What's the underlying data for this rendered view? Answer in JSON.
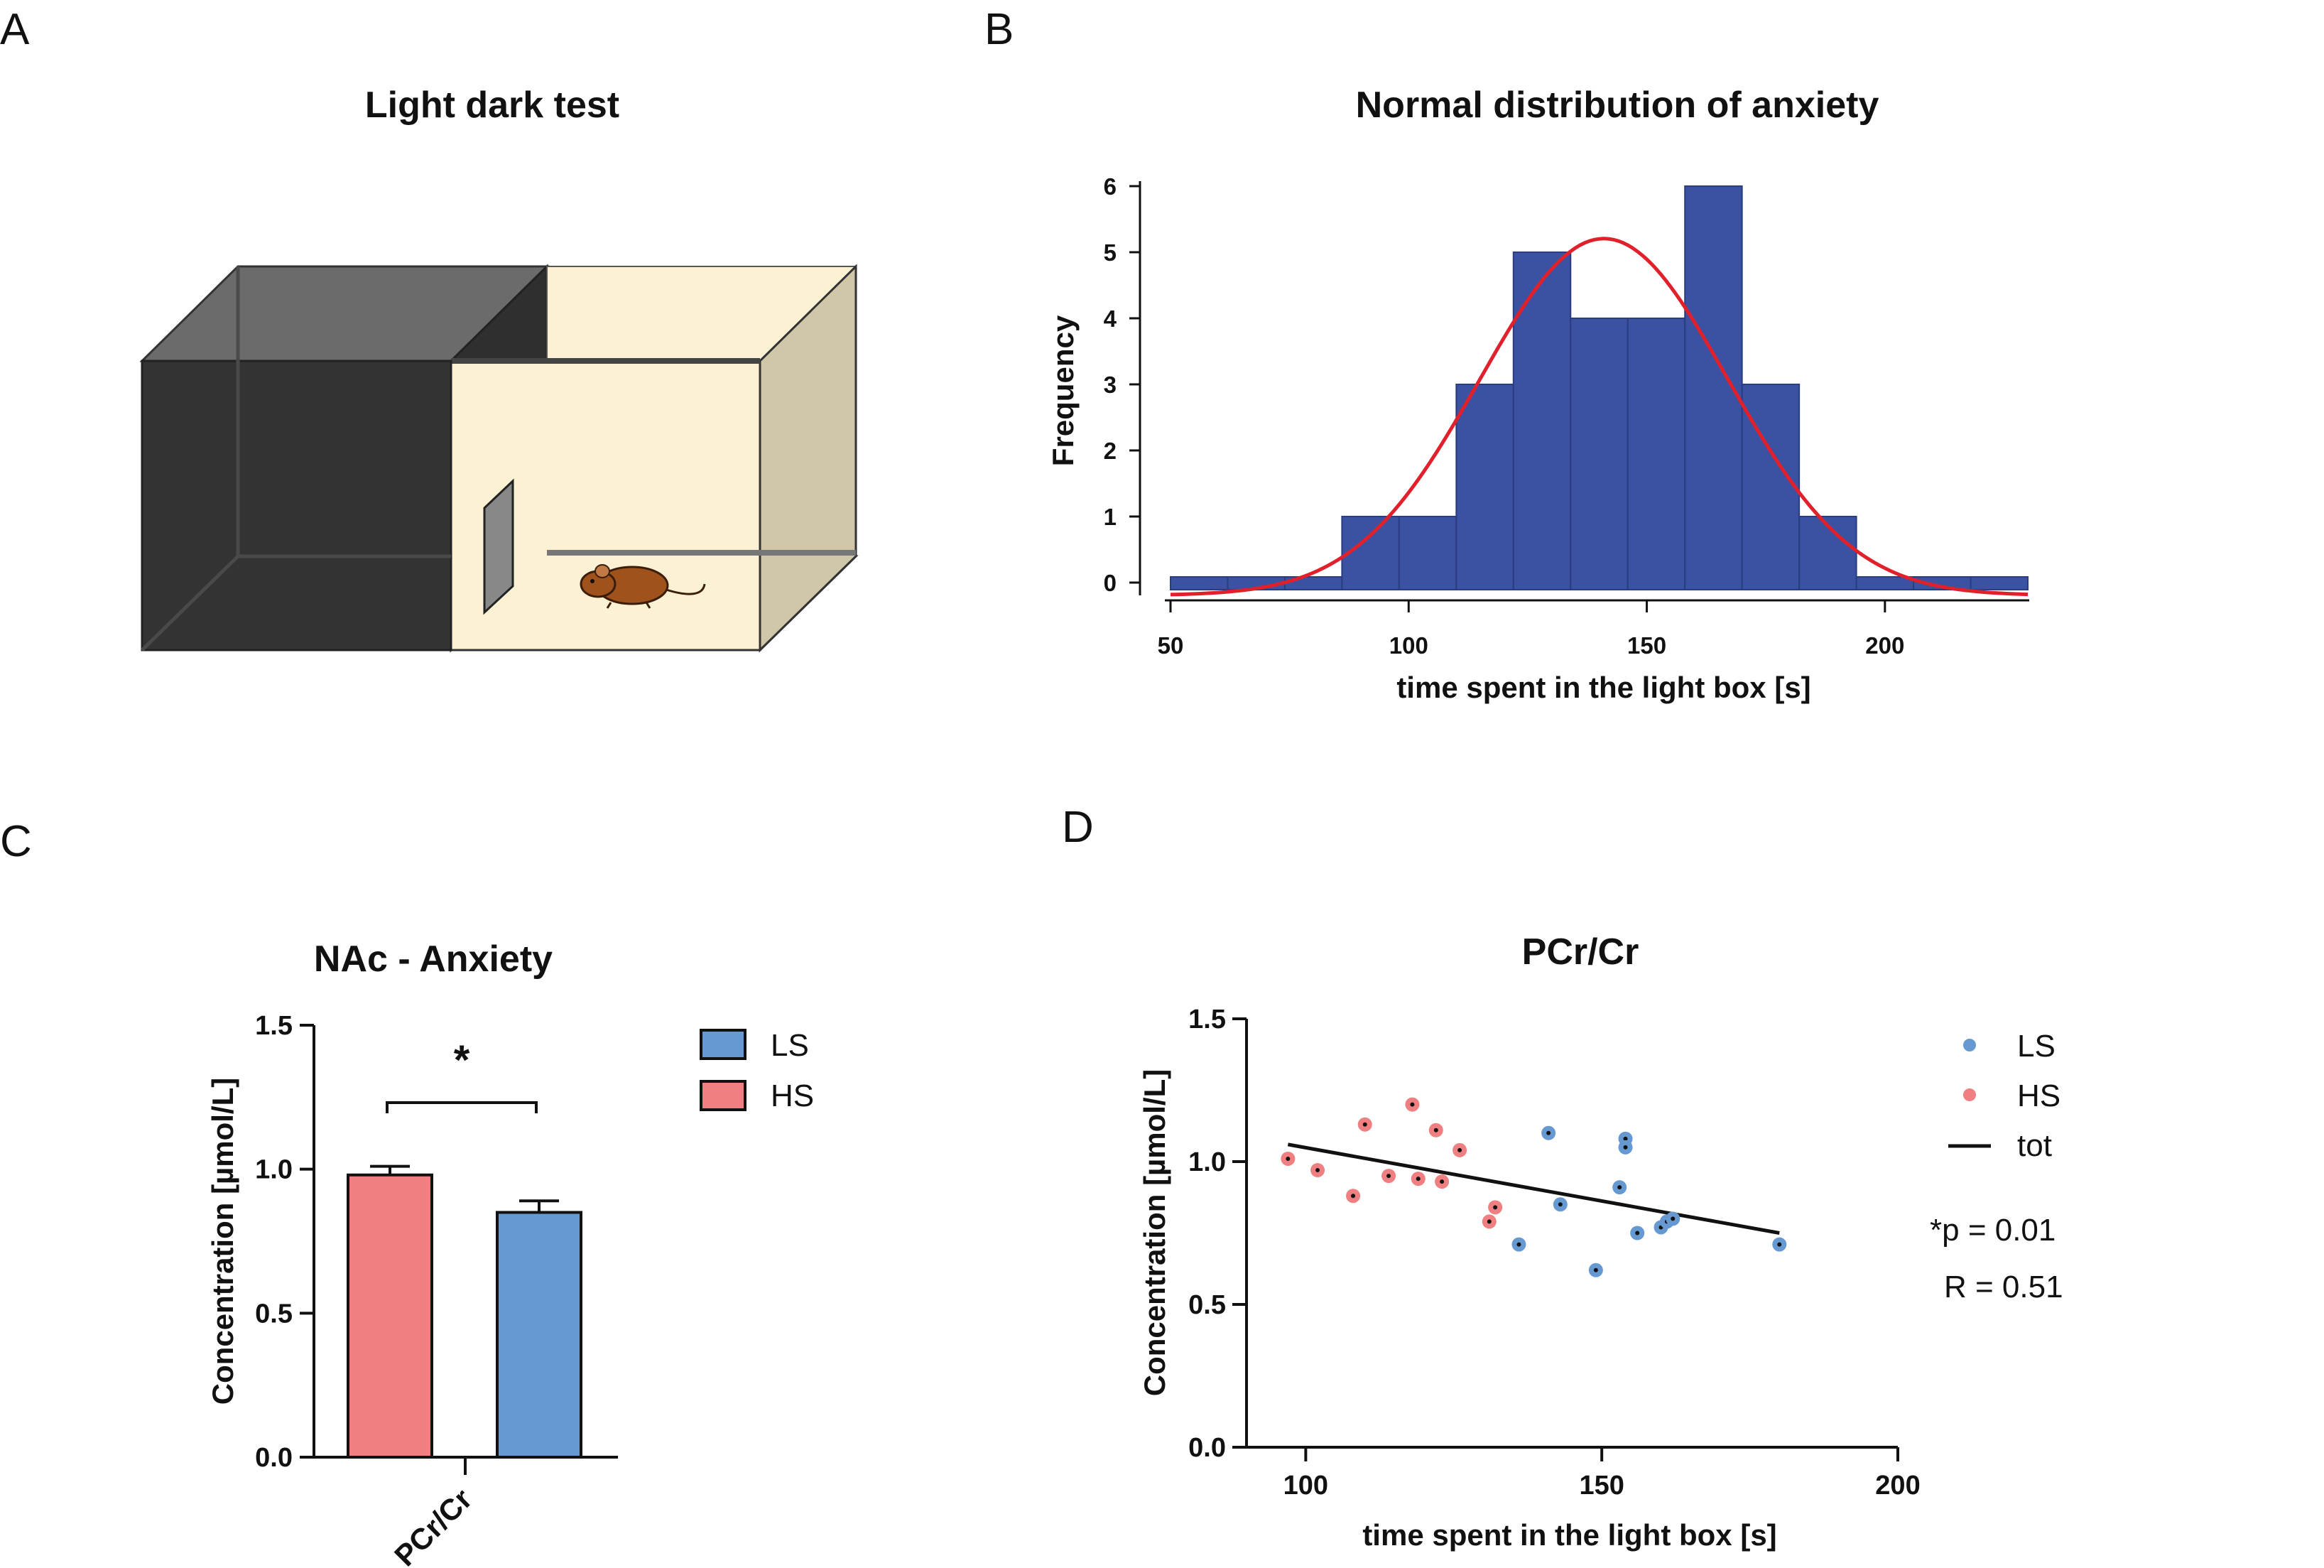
{
  "panels": {
    "A": {
      "letter": "A",
      "title": "Light dark test"
    },
    "B": {
      "letter": "B"
    },
    "C": {
      "letter": "C",
      "significance": "*"
    },
    "D": {
      "letter": "D",
      "stats": {
        "p": "*p  = 0.01",
        "r": "R = 0.51"
      }
    }
  },
  "colors": {
    "hist_bar": "#3b52a3",
    "normal_curve": "#e0202b",
    "hs": "#ef7f80",
    "ls": "#6699d2",
    "dark_box": "#333333",
    "light_box": "#fcf2d3"
  },
  "chart_data": [
    {
      "id": "B",
      "type": "bar",
      "title": "Normal distribution of anxiety",
      "xlabel": "time spent in the light box [s]",
      "ylabel": "Frequency",
      "xlim": [
        50,
        230
      ],
      "ylim": [
        0,
        6
      ],
      "xticks": [
        50,
        100,
        150,
        200
      ],
      "yticks": [
        0,
        1,
        2,
        3,
        4,
        5,
        6
      ],
      "bin_width": 12,
      "bins": [
        {
          "start": 50,
          "count": 0
        },
        {
          "start": 62,
          "count": 0
        },
        {
          "start": 74,
          "count": 0
        },
        {
          "start": 86,
          "count": 1
        },
        {
          "start": 98,
          "count": 1
        },
        {
          "start": 110,
          "count": 3
        },
        {
          "start": 122,
          "count": 5
        },
        {
          "start": 134,
          "count": 4
        },
        {
          "start": 146,
          "count": 4
        },
        {
          "start": 158,
          "count": 6
        },
        {
          "start": 170,
          "count": 3
        },
        {
          "start": 182,
          "count": 1
        },
        {
          "start": 194,
          "count": 0
        },
        {
          "start": 206,
          "count": 0
        },
        {
          "start": 218,
          "count": 0
        }
      ],
      "normal_fit": {
        "mean": 141,
        "sd": 26,
        "peak": 5.4
      }
    },
    {
      "id": "C",
      "type": "bar",
      "title": "NAc - Anxiety",
      "ylabel": "Concentration [µmol/L]",
      "categories": [
        "PCr/Cr"
      ],
      "ylim": [
        0,
        1.5
      ],
      "yticks": [
        "0.0",
        "0.5",
        "1.0",
        "1.5"
      ],
      "series": [
        {
          "name": "HS",
          "values": [
            0.98
          ],
          "error": [
            0.03
          ]
        },
        {
          "name": "LS",
          "values": [
            0.85
          ],
          "error": [
            0.04
          ]
        }
      ],
      "legend": [
        "LS",
        "HS"
      ]
    },
    {
      "id": "D",
      "type": "scatter",
      "title": "PCr/Cr",
      "xlabel": "time spent in the light box [s]",
      "ylabel": "Concentration [µmol/L]",
      "xlim": [
        90,
        200
      ],
      "ylim": [
        0,
        1.5
      ],
      "xticks": [
        100,
        150,
        200
      ],
      "yticks": [
        "0.0",
        "0.5",
        "1.0",
        "1.5"
      ],
      "series": [
        {
          "name": "LS",
          "points": [
            [
              141,
              1.1
            ],
            [
              154,
              1.08
            ],
            [
              154,
              1.05
            ],
            [
              153,
              0.91
            ],
            [
              143,
              0.85
            ],
            [
              136,
              0.71
            ],
            [
              149,
              0.62
            ],
            [
              156,
              0.75
            ],
            [
              160,
              0.77
            ],
            [
              161,
              0.79
            ],
            [
              162,
              0.8
            ],
            [
              180,
              0.71
            ]
          ]
        },
        {
          "name": "HS",
          "points": [
            [
              97,
              1.01
            ],
            [
              102,
              0.97
            ],
            [
              108,
              0.88
            ],
            [
              110,
              1.13
            ],
            [
              114,
              0.95
            ],
            [
              118,
              1.2
            ],
            [
              119,
              0.94
            ],
            [
              122,
              1.11
            ],
            [
              123,
              0.93
            ],
            [
              126,
              1.04
            ],
            [
              131,
              0.79
            ],
            [
              132,
              0.84
            ]
          ]
        }
      ],
      "fit": {
        "name": "tot",
        "x": [
          97,
          180
        ],
        "y": [
          1.06,
          0.75
        ]
      },
      "legend": [
        "LS",
        "HS",
        "tot"
      ]
    }
  ]
}
